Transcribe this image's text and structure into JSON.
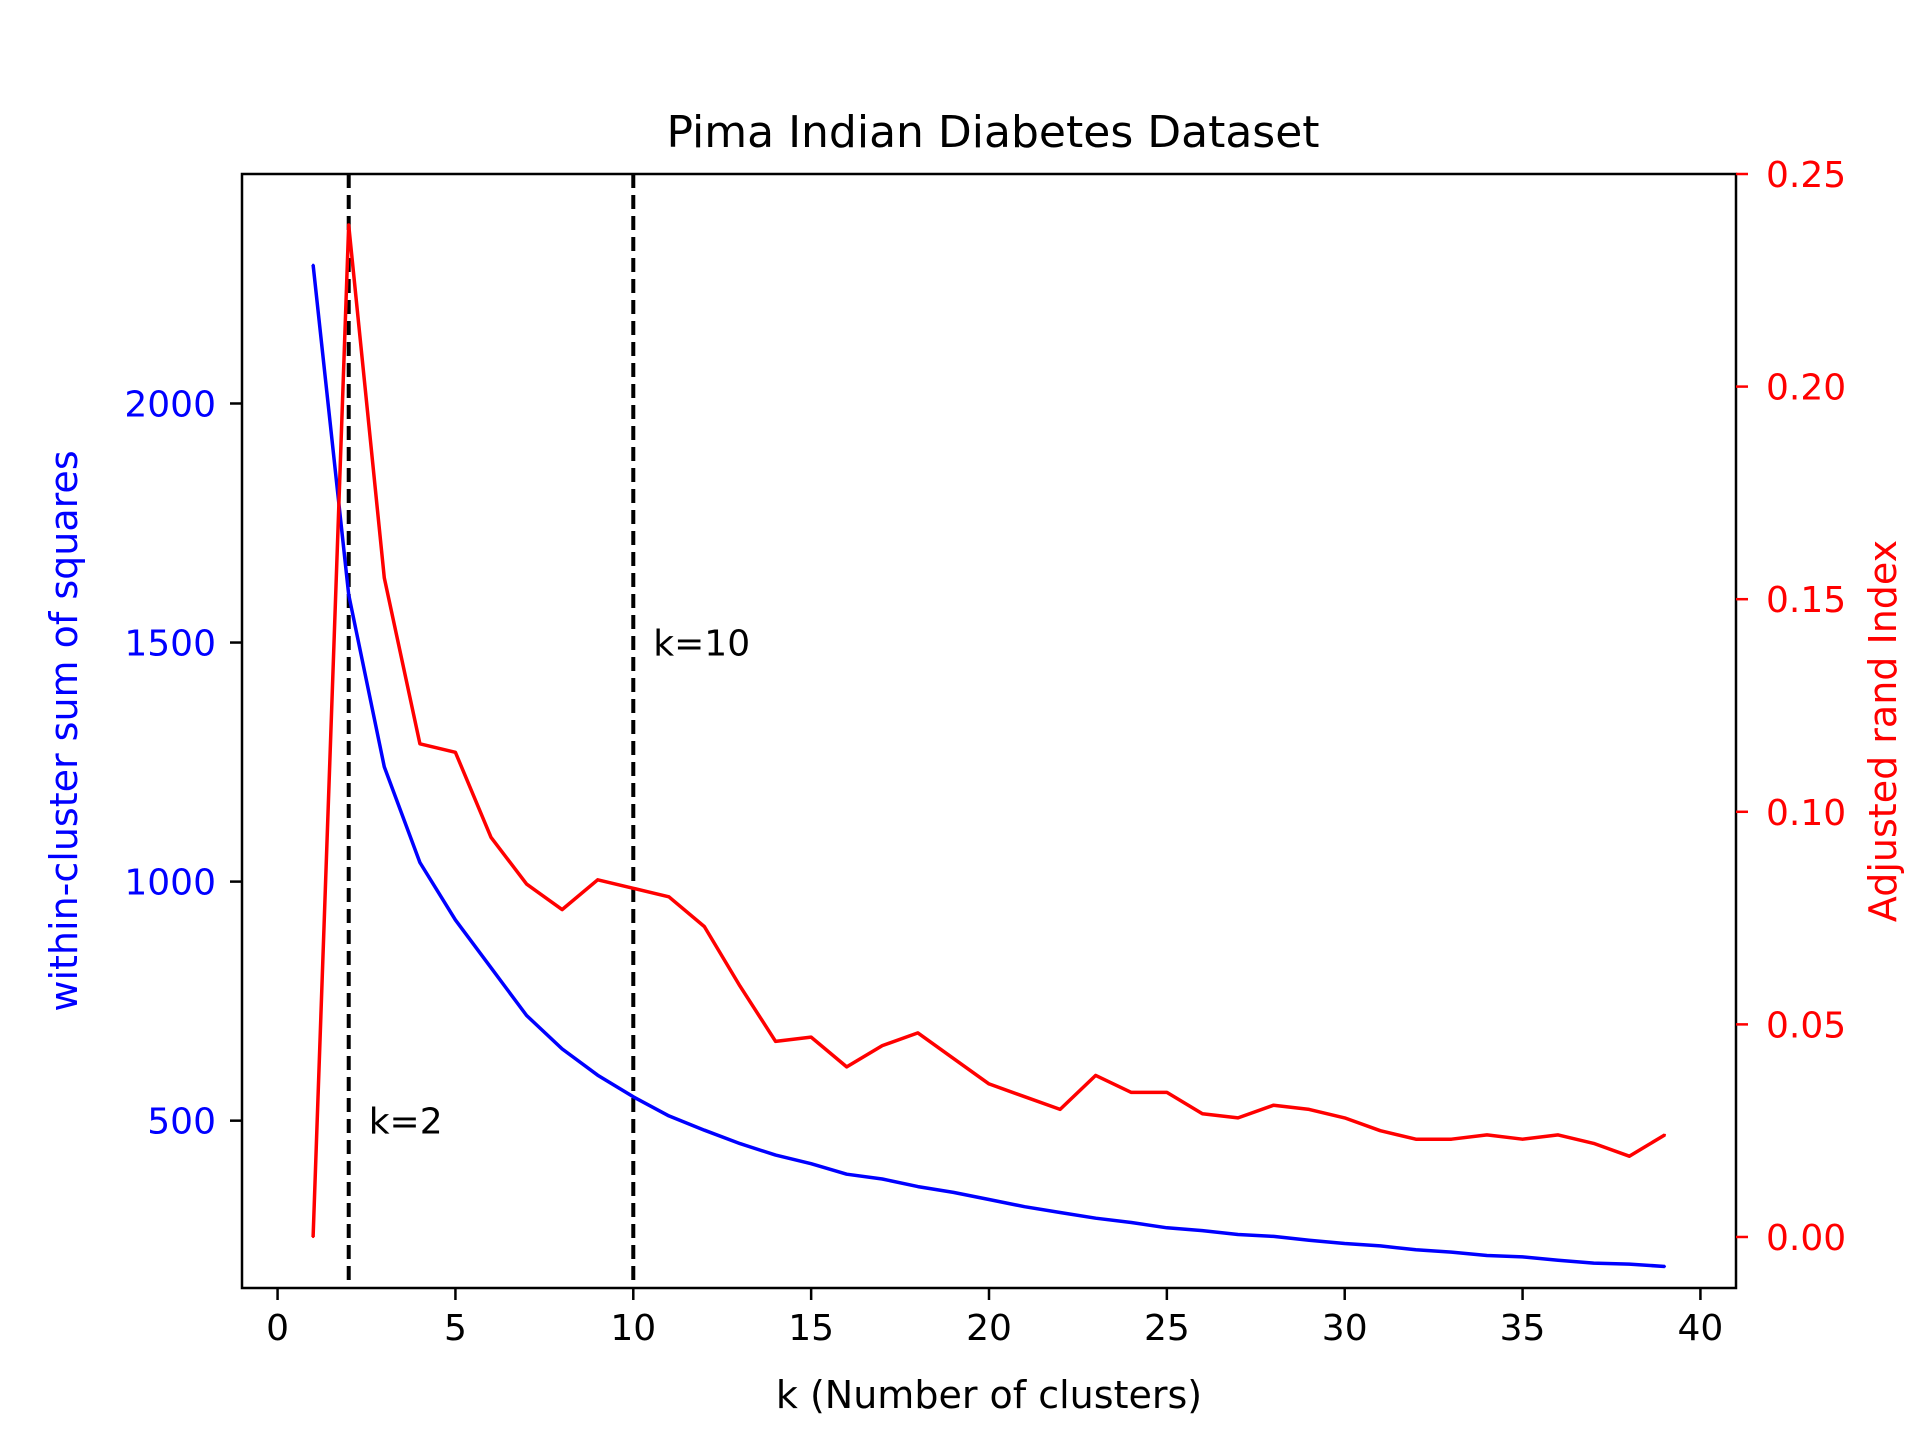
{
  "chart_data": {
    "type": "line",
    "title": "Pima Indian Diabetes Dataset",
    "xlabel": "k (Number of clusters)",
    "ylabel_left": "within-cluster sum of squares",
    "ylabel_right": "Adjusted rand Index",
    "xlim": [
      -1,
      41
    ],
    "ylim_left": [
      150,
      2480
    ],
    "ylim_right": [
      -0.012,
      0.25
    ],
    "x_ticks": [
      0,
      5,
      10,
      15,
      20,
      25,
      30,
      35,
      40
    ],
    "x_tick_labels": [
      "0",
      "5",
      "10",
      "15",
      "20",
      "25",
      "30",
      "35",
      "40"
    ],
    "y_left_ticks": [
      500,
      1000,
      1500,
      2000
    ],
    "y_left_tick_labels": [
      "500",
      "1000",
      "1500",
      "2000"
    ],
    "y_right_ticks": [
      0.0,
      0.05,
      0.1,
      0.15,
      0.2,
      0.25
    ],
    "y_right_tick_labels": [
      "0.00",
      "0.05",
      "0.10",
      "0.15",
      "0.20",
      "0.25"
    ],
    "grid": false,
    "x": [
      1,
      2,
      3,
      4,
      5,
      6,
      7,
      8,
      9,
      10,
      11,
      12,
      13,
      14,
      15,
      16,
      17,
      18,
      19,
      20,
      21,
      22,
      23,
      24,
      25,
      26,
      27,
      28,
      29,
      30,
      31,
      32,
      33,
      34,
      35,
      36,
      37,
      38,
      39
    ],
    "series": [
      {
        "name": "within-cluster sum of squares",
        "axis": "left",
        "color": "#0000ff",
        "values": [
          2290,
          1600,
          1240,
          1040,
          920,
          820,
          720,
          650,
          595,
          550,
          510,
          480,
          452,
          428,
          410,
          388,
          378,
          362,
          350,
          335,
          320,
          308,
          296,
          287,
          276,
          270,
          262,
          258,
          250,
          243,
          238,
          230,
          225,
          218,
          215,
          208,
          202,
          200,
          195
        ]
      },
      {
        "name": "Adjusted rand Index",
        "axis": "right",
        "color": "#ff0000",
        "values": [
          0.0,
          0.238,
          0.155,
          0.116,
          0.114,
          0.094,
          0.083,
          0.077,
          0.084,
          0.082,
          0.08,
          0.073,
          0.059,
          0.046,
          0.047,
          0.04,
          0.045,
          0.048,
          0.042,
          0.036,
          0.033,
          0.03,
          0.038,
          0.034,
          0.034,
          0.029,
          0.028,
          0.031,
          0.03,
          0.028,
          0.025,
          0.023,
          0.023,
          0.024,
          0.023,
          0.024,
          0.022,
          0.019,
          0.024
        ]
      }
    ],
    "vlines": [
      {
        "x": 2,
        "label": "k=2",
        "label_y": 500
      },
      {
        "x": 10,
        "label": "k=10",
        "label_y": 1500
      }
    ]
  }
}
